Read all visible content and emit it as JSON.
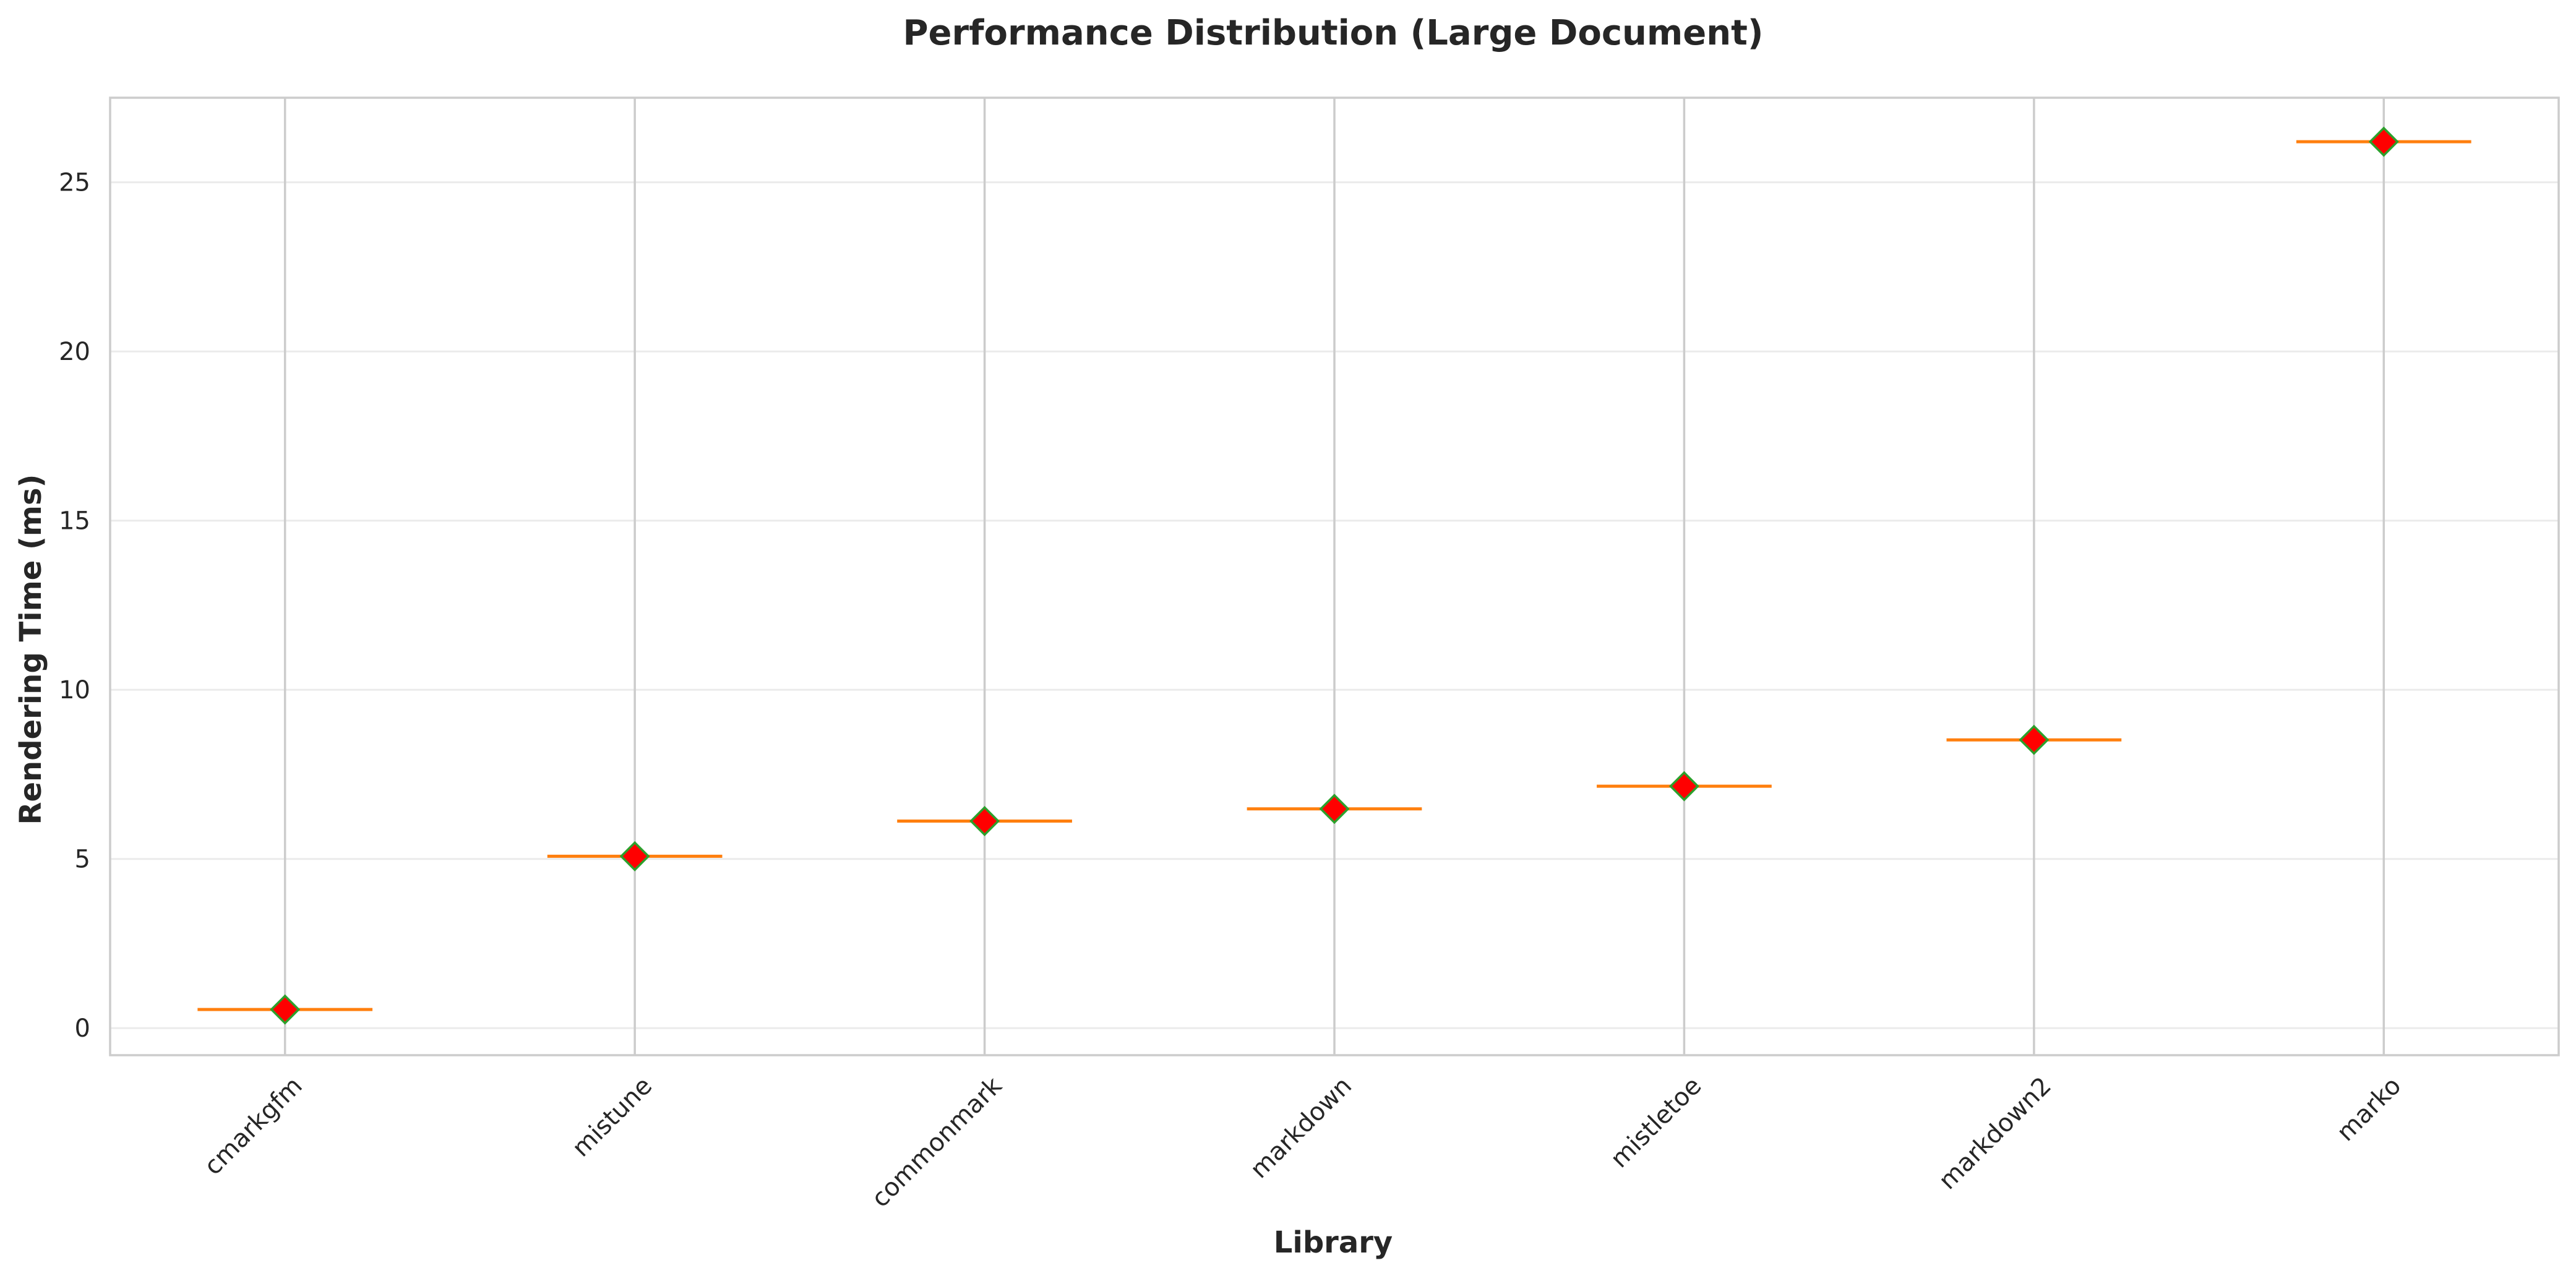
{
  "chart_data": {
    "type": "box",
    "title": "Performance Distribution (Large Document)",
    "xlabel": "Library",
    "ylabel": "Rendering Time (ms)",
    "categories": [
      "cmarkgfm",
      "mistune",
      "commonmark",
      "markdown",
      "mistletoe",
      "markdown2",
      "marko"
    ],
    "medians": [
      0.55,
      5.08,
      6.12,
      6.48,
      7.15,
      8.52,
      26.2
    ],
    "means": [
      0.55,
      5.08,
      6.12,
      6.48,
      7.15,
      8.52,
      26.2
    ],
    "ylim": [
      -0.8,
      27.5
    ],
    "yticks": [
      0,
      5,
      10,
      15,
      20,
      25
    ],
    "grid": true,
    "legend": "none",
    "colors": {
      "median_line": "#ff7f0e",
      "mean_marker_fill": "#ff0000",
      "mean_marker_edge": "#2ca02c",
      "grid": "#ebebeb",
      "vgrid": "#cccccc",
      "axes_edge": "#cccccc"
    }
  }
}
